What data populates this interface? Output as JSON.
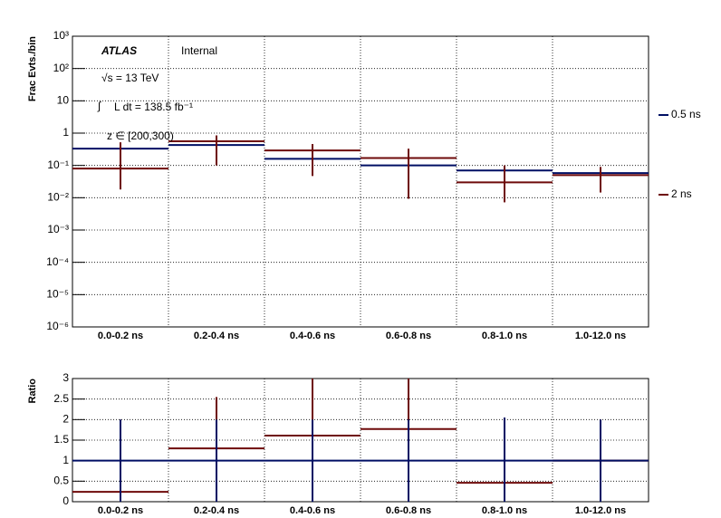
{
  "chart_data": [
    {
      "type": "step",
      "log_y": true,
      "grid": true,
      "legend_position": "right",
      "y_label": "Frac Evts./bin",
      "annotations": [
        "ATLAS",
        "Internal",
        "√s = 13 TeV",
        "∫",
        "L dt = 138.5 fb⁻¹",
        "z ∈ [200,300)"
      ],
      "categories": [
        "0.0-0.2 ns",
        "0.2-0.4 ns",
        "0.4-0.6 ns",
        "0.6-0.8 ns",
        "0.8-1.0 ns",
        "1.0-12.0 ns"
      ],
      "ylim": [
        1e-06,
        1000
      ],
      "yticks": [
        {
          "value": 1e-06,
          "label": "10⁻⁶"
        },
        {
          "value": 1e-05,
          "label": "10⁻⁵"
        },
        {
          "value": 0.0001,
          "label": "10⁻⁴"
        },
        {
          "value": 0.001,
          "label": "10⁻³"
        },
        {
          "value": 0.01,
          "label": "10⁻²"
        },
        {
          "value": 0.1,
          "label": "10⁻¹"
        },
        1,
        10,
        {
          "value": 100,
          "label": "10²"
        },
        {
          "value": 1000,
          "label": "10³"
        }
      ],
      "series": [
        {
          "name": "0.5 ns",
          "color": "#000f64",
          "values": [
            0.33,
            0.43,
            0.16,
            0.1,
            0.07,
            0.058
          ]
        },
        {
          "name": "2 ns",
          "color": "#6e0a0a",
          "values": [
            0.08,
            0.56,
            0.29,
            0.17,
            0.03,
            0.05
          ],
          "lower": [
            0.018,
            0.1,
            0.047,
            0.0093,
            0.0072,
            0.0145
          ],
          "upper": [
            0.52,
            0.85,
            0.46,
            0.33,
            0.1,
            0.09
          ]
        }
      ]
    },
    {
      "type": "step",
      "log_y": false,
      "grid": true,
      "y_label": "Ratio",
      "categories": [
        "0.0-0.2 ns",
        "0.2-0.4 ns",
        "0.4-0.6 ns",
        "0.6-0.8 ns",
        "0.8-1.0 ns",
        "1.0-12.0 ns"
      ],
      "ylim": [
        0,
        3
      ],
      "yticks": [
        0,
        0.5,
        1,
        1.5,
        2,
        2.5,
        3
      ],
      "series": [
        {
          "color": "#6e0a0a",
          "values": [
            0.24,
            1.3,
            1.61,
            1.77,
            0.46,
            1.0
          ],
          "lower": [
            0,
            0,
            0,
            0,
            0,
            0
          ],
          "upper": [
            2,
            2.55,
            3,
            3,
            1.2,
            2
          ]
        },
        {
          "color": "#000f64",
          "values": [
            1,
            1,
            1,
            1,
            1,
            1
          ],
          "lower": [
            0,
            0,
            0,
            0,
            0,
            0
          ],
          "upper": [
            2,
            2,
            2,
            2,
            2.05,
            2
          ]
        }
      ]
    }
  ]
}
